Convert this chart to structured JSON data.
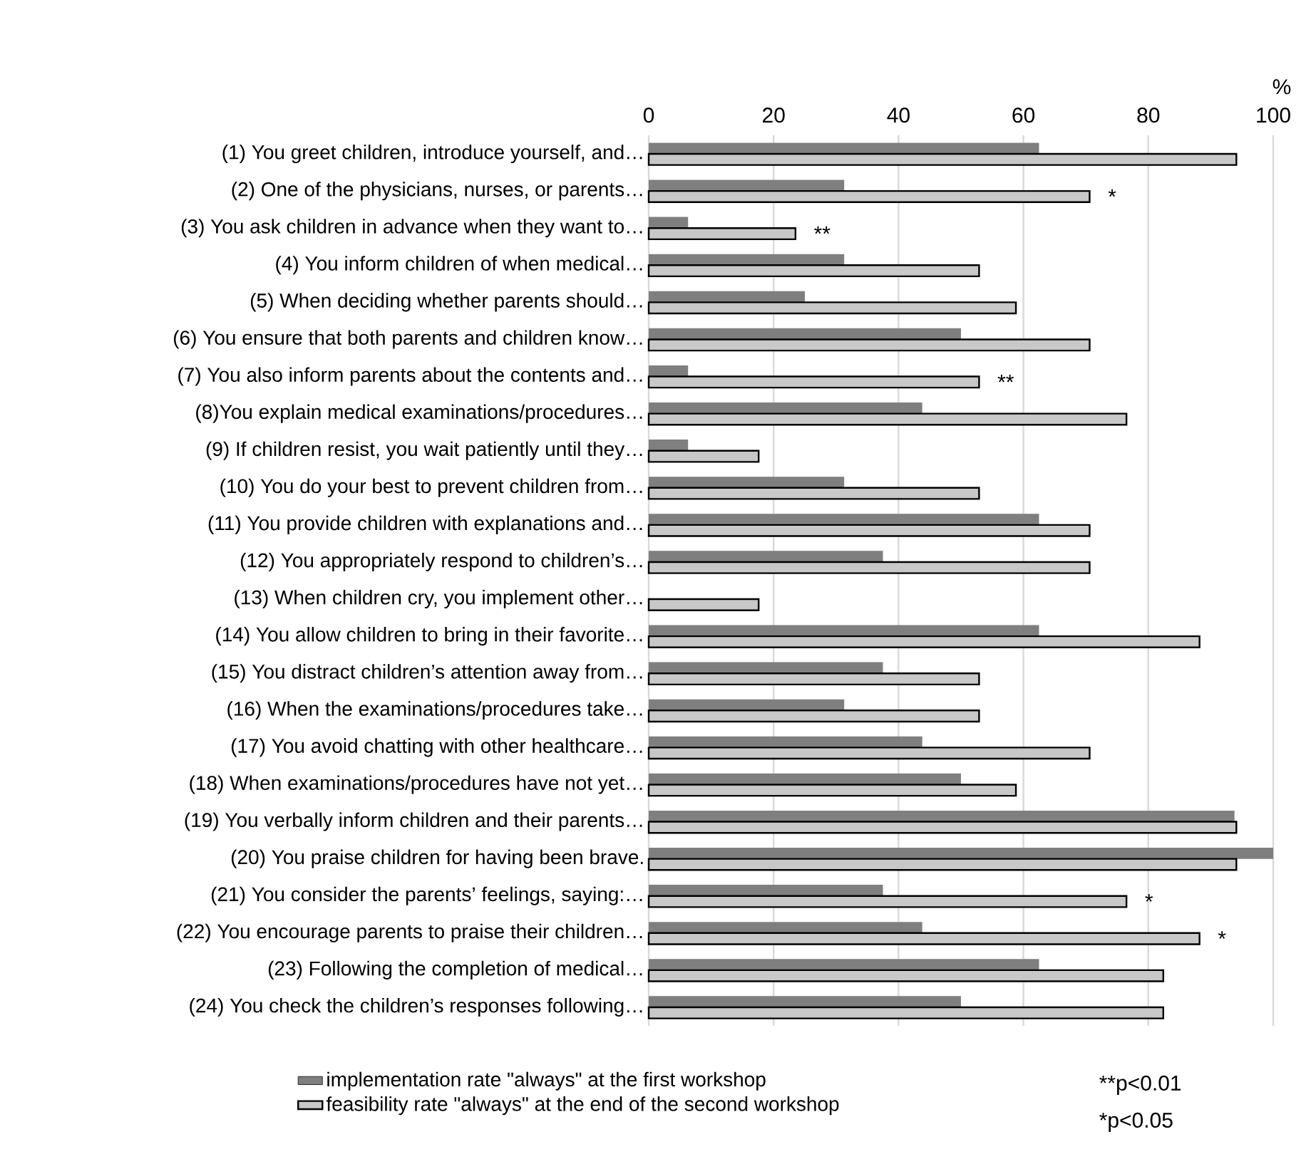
{
  "chart_data": {
    "type": "bar",
    "orientation": "horizontal",
    "xlabel": "%",
    "categories": [
      "(1) You greet children, introduce yourself, and…",
      "(2) One of the physicians, nurses, or parents…",
      "(3) You ask children in advance when they want to…",
      "(4) You inform children of when medical…",
      "(5) When deciding whether parents should…",
      "(6) You ensure that both parents and children know…",
      "(7) You also inform parents about the contents and…",
      "(8)You explain medical examinations/procedures…",
      "(9) If children resist, you wait patiently until they…",
      "(10) You do your best to prevent children from…",
      "(11) You provide children with explanations and…",
      "(12) You appropriately respond to children’s…",
      "(13) When children cry, you implement other…",
      "(14) You allow children to bring in their favorite…",
      "(15) You distract children’s attention away from…",
      "(16) When the examinations/procedures take…",
      "(17) You avoid chatting with other healthcare…",
      "(18) When examinations/procedures have not yet…",
      "(19) You verbally inform children and their parents…",
      "(20) You praise children for having been brave.",
      "(21) You consider the parents’ feelings, saying:…",
      "(22) You encourage parents to praise their children…",
      "(23) Following the completion of medical…",
      "(24) You check the children’s responses following…"
    ],
    "series": [
      {
        "name": "implementation rate \"always\" at the first workshop",
        "color": "#7f7f7f",
        "values": [
          62.5,
          31.3,
          6.3,
          31.3,
          25,
          50,
          6.3,
          43.8,
          6.3,
          31.3,
          62.5,
          37.5,
          0,
          62.5,
          37.5,
          31.3,
          43.8,
          50,
          93.8,
          100,
          37.5,
          43.8,
          62.5,
          50
        ]
      },
      {
        "name": "feasibility rate \"always\" at the end of the second workshop",
        "color": "#c8c8c8",
        "values": [
          94.1,
          70.6,
          23.5,
          52.9,
          58.8,
          70.6,
          52.9,
          76.5,
          17.6,
          52.9,
          70.6,
          70.6,
          17.6,
          88.2,
          52.9,
          52.9,
          70.6,
          58.8,
          94.1,
          94.1,
          76.5,
          88.2,
          82.4,
          82.4
        ]
      }
    ],
    "xlim": [
      0,
      100
    ],
    "xticks": [
      0,
      20,
      40,
      60,
      80,
      100
    ],
    "grid": "x",
    "legend": "bottom",
    "annotations": [
      {
        "text": "*",
        "x": 70.6,
        "y": "(2) One of the physicians, nurses, or parents…"
      },
      {
        "text": "**",
        "x": 23.5,
        "y": "(3) You ask children in advance when they want to…"
      },
      {
        "text": "**",
        "x": 52.9,
        "y": "(7) You also inform parents about the contents and…"
      },
      {
        "text": "*",
        "x": 76.5,
        "y": "(21) You consider the parents’ feelings, saying:…"
      },
      {
        "text": "*",
        "x": 88.2,
        "y": "(22) You encourage parents to praise their children…"
      },
      "**p<0.01",
      "*p<0.05"
    ]
  }
}
